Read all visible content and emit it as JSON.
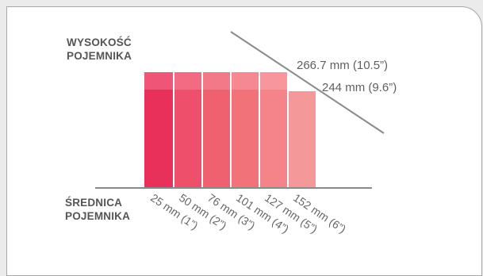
{
  "labels": {
    "height_line1": "WYSOKOŚĆ",
    "height_line2": "POJEMNIKA",
    "diameter_line1": "ŚREDNICA",
    "diameter_line2": "POJEMNIKA"
  },
  "heights": {
    "tall": "266.7 mm (10.5”)",
    "short": "244 mm (9.6”)"
  },
  "sizes": [
    {
      "label": "25 mm (1”)",
      "color": "#e8305b",
      "cap": "#ee5577",
      "tall": true
    },
    {
      "label": "50 mm (2”)",
      "color": "#ee4f6a",
      "cap": "#f26b82",
      "tall": true
    },
    {
      "label": "76 mm (3”)",
      "color": "#f0616f",
      "cap": "#f47988",
      "tall": true
    },
    {
      "label": "101 mm (4”)",
      "color": "#f2727a",
      "cap": "#f58890",
      "tall": true
    },
    {
      "label": "127 mm (5”)",
      "color": "#f4838a",
      "cap": "#f7979c",
      "tall": true
    },
    {
      "label": "152 mm (6”)",
      "color": "#f5989a",
      "cap": "#f5989a",
      "tall": false
    }
  ],
  "colors": {
    "line": "#8a8a8a",
    "text": "#5f5f5f"
  }
}
